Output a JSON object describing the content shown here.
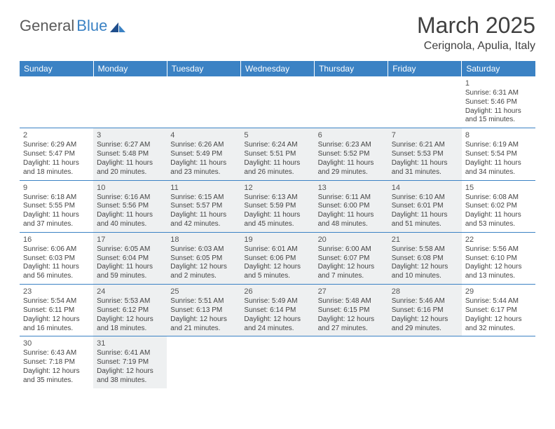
{
  "logo": {
    "general": "General",
    "blue": "Blue"
  },
  "title": "March 2025",
  "location": "Cerignola, Apulia, Italy",
  "colors": {
    "header_bg": "#3b82c4",
    "header_text": "#ffffff",
    "shaded_bg": "#eef0f1",
    "border": "#3b82c4",
    "text": "#444444",
    "title_text": "#404040"
  },
  "weekdays": [
    "Sunday",
    "Monday",
    "Tuesday",
    "Wednesday",
    "Thursday",
    "Friday",
    "Saturday"
  ],
  "days": {
    "1": {
      "sunrise": "6:31 AM",
      "sunset": "5:46 PM",
      "dl_h": 11,
      "dl_m": 15
    },
    "2": {
      "sunrise": "6:29 AM",
      "sunset": "5:47 PM",
      "dl_h": 11,
      "dl_m": 18
    },
    "3": {
      "sunrise": "6:27 AM",
      "sunset": "5:48 PM",
      "dl_h": 11,
      "dl_m": 20
    },
    "4": {
      "sunrise": "6:26 AM",
      "sunset": "5:49 PM",
      "dl_h": 11,
      "dl_m": 23
    },
    "5": {
      "sunrise": "6:24 AM",
      "sunset": "5:51 PM",
      "dl_h": 11,
      "dl_m": 26
    },
    "6": {
      "sunrise": "6:23 AM",
      "sunset": "5:52 PM",
      "dl_h": 11,
      "dl_m": 29
    },
    "7": {
      "sunrise": "6:21 AM",
      "sunset": "5:53 PM",
      "dl_h": 11,
      "dl_m": 31
    },
    "8": {
      "sunrise": "6:19 AM",
      "sunset": "5:54 PM",
      "dl_h": 11,
      "dl_m": 34
    },
    "9": {
      "sunrise": "6:18 AM",
      "sunset": "5:55 PM",
      "dl_h": 11,
      "dl_m": 37
    },
    "10": {
      "sunrise": "6:16 AM",
      "sunset": "5:56 PM",
      "dl_h": 11,
      "dl_m": 40
    },
    "11": {
      "sunrise": "6:15 AM",
      "sunset": "5:57 PM",
      "dl_h": 11,
      "dl_m": 42
    },
    "12": {
      "sunrise": "6:13 AM",
      "sunset": "5:59 PM",
      "dl_h": 11,
      "dl_m": 45
    },
    "13": {
      "sunrise": "6:11 AM",
      "sunset": "6:00 PM",
      "dl_h": 11,
      "dl_m": 48
    },
    "14": {
      "sunrise": "6:10 AM",
      "sunset": "6:01 PM",
      "dl_h": 11,
      "dl_m": 51
    },
    "15": {
      "sunrise": "6:08 AM",
      "sunset": "6:02 PM",
      "dl_h": 11,
      "dl_m": 53
    },
    "16": {
      "sunrise": "6:06 AM",
      "sunset": "6:03 PM",
      "dl_h": 11,
      "dl_m": 56
    },
    "17": {
      "sunrise": "6:05 AM",
      "sunset": "6:04 PM",
      "dl_h": 11,
      "dl_m": 59
    },
    "18": {
      "sunrise": "6:03 AM",
      "sunset": "6:05 PM",
      "dl_h": 12,
      "dl_m": 2
    },
    "19": {
      "sunrise": "6:01 AM",
      "sunset": "6:06 PM",
      "dl_h": 12,
      "dl_m": 5
    },
    "20": {
      "sunrise": "6:00 AM",
      "sunset": "6:07 PM",
      "dl_h": 12,
      "dl_m": 7
    },
    "21": {
      "sunrise": "5:58 AM",
      "sunset": "6:08 PM",
      "dl_h": 12,
      "dl_m": 10
    },
    "22": {
      "sunrise": "5:56 AM",
      "sunset": "6:10 PM",
      "dl_h": 12,
      "dl_m": 13
    },
    "23": {
      "sunrise": "5:54 AM",
      "sunset": "6:11 PM",
      "dl_h": 12,
      "dl_m": 16
    },
    "24": {
      "sunrise": "5:53 AM",
      "sunset": "6:12 PM",
      "dl_h": 12,
      "dl_m": 18
    },
    "25": {
      "sunrise": "5:51 AM",
      "sunset": "6:13 PM",
      "dl_h": 12,
      "dl_m": 21
    },
    "26": {
      "sunrise": "5:49 AM",
      "sunset": "6:14 PM",
      "dl_h": 12,
      "dl_m": 24
    },
    "27": {
      "sunrise": "5:48 AM",
      "sunset": "6:15 PM",
      "dl_h": 12,
      "dl_m": 27
    },
    "28": {
      "sunrise": "5:46 AM",
      "sunset": "6:16 PM",
      "dl_h": 12,
      "dl_m": 29
    },
    "29": {
      "sunrise": "5:44 AM",
      "sunset": "6:17 PM",
      "dl_h": 12,
      "dl_m": 32
    },
    "30": {
      "sunrise": "6:43 AM",
      "sunset": "7:18 PM",
      "dl_h": 12,
      "dl_m": 35
    },
    "31": {
      "sunrise": "6:41 AM",
      "sunset": "7:19 PM",
      "dl_h": 12,
      "dl_m": 38
    }
  },
  "layout": {
    "first_weekday_index": 6,
    "num_days": 31,
    "rows": 6,
    "cols": 7,
    "shaded_columns": [
      1,
      2,
      3,
      4,
      5
    ]
  },
  "labels": {
    "sunrise": "Sunrise:",
    "sunset": "Sunset:",
    "daylight_prefix": "Daylight:",
    "hours_word": "hours",
    "and_word": "and",
    "minutes_word": "minutes."
  }
}
